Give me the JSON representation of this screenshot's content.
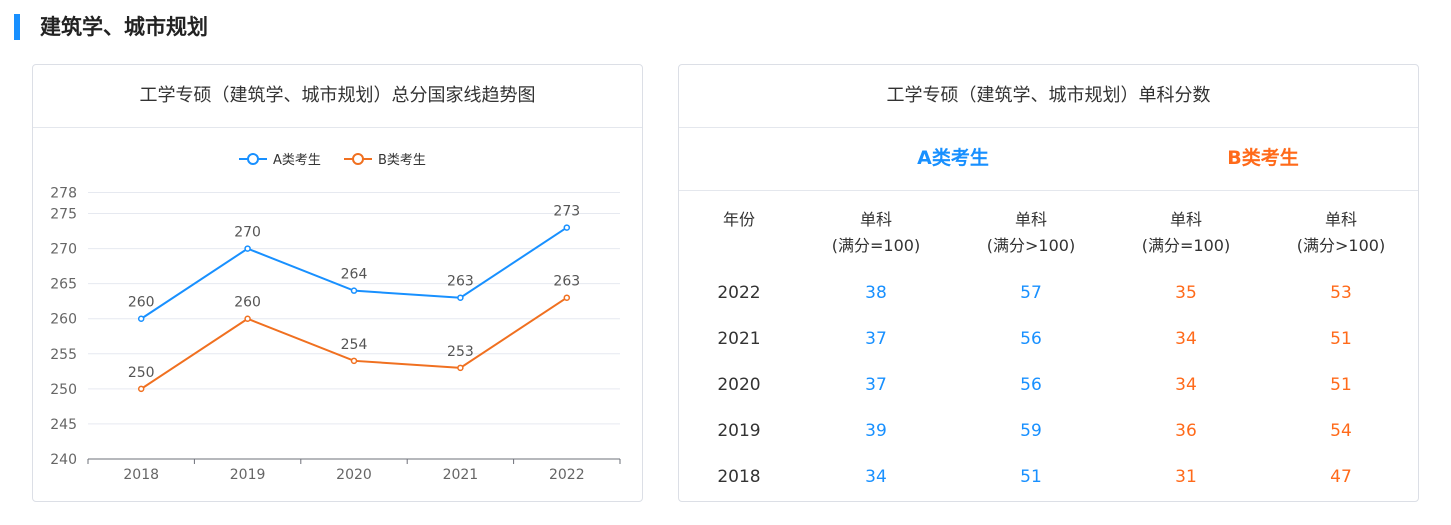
{
  "section": {
    "title": "建筑学、城市规划"
  },
  "colors": {
    "accent": "#1890ff",
    "series_a": "#1890ff",
    "series_b": "#f07020",
    "table_b": "#ff6a1a"
  },
  "chart_card": {
    "title": "工学专硕（建筑学、城市规划）总分国家线趋势图"
  },
  "chart_data": {
    "type": "line",
    "title": "工学专硕（建筑学、城市规划）总分国家线趋势图",
    "x": [
      "2018",
      "2019",
      "2020",
      "2021",
      "2022"
    ],
    "yticks": [
      240,
      245,
      250,
      255,
      260,
      265,
      270,
      275,
      278
    ],
    "ylim": [
      240,
      278
    ],
    "grid": true,
    "legend_position": "top-center",
    "series": [
      {
        "name": "A类考生",
        "values": [
          260,
          270,
          264,
          263,
          273
        ]
      },
      {
        "name": "B类考生",
        "values": [
          250,
          260,
          254,
          253,
          263
        ]
      }
    ]
  },
  "table_card": {
    "title": "工学专硕（建筑学、城市规划）单科分数",
    "group_a": "A类考生",
    "group_b": "B类考生",
    "headers": {
      "year": "年份",
      "a1": [
        "单科",
        "(满分=100)"
      ],
      "a2": [
        "单科",
        "(满分>100)"
      ],
      "b1": [
        "单科",
        "(满分=100)"
      ],
      "b2": [
        "单科",
        "(满分>100)"
      ]
    },
    "rows": [
      {
        "year": "2022",
        "a1": "38",
        "a2": "57",
        "b1": "35",
        "b2": "53"
      },
      {
        "year": "2021",
        "a1": "37",
        "a2": "56",
        "b1": "34",
        "b2": "51"
      },
      {
        "year": "2020",
        "a1": "37",
        "a2": "56",
        "b1": "34",
        "b2": "51"
      },
      {
        "year": "2019",
        "a1": "39",
        "a2": "59",
        "b1": "36",
        "b2": "54"
      },
      {
        "year": "2018",
        "a1": "34",
        "a2": "51",
        "b1": "31",
        "b2": "47"
      }
    ]
  }
}
